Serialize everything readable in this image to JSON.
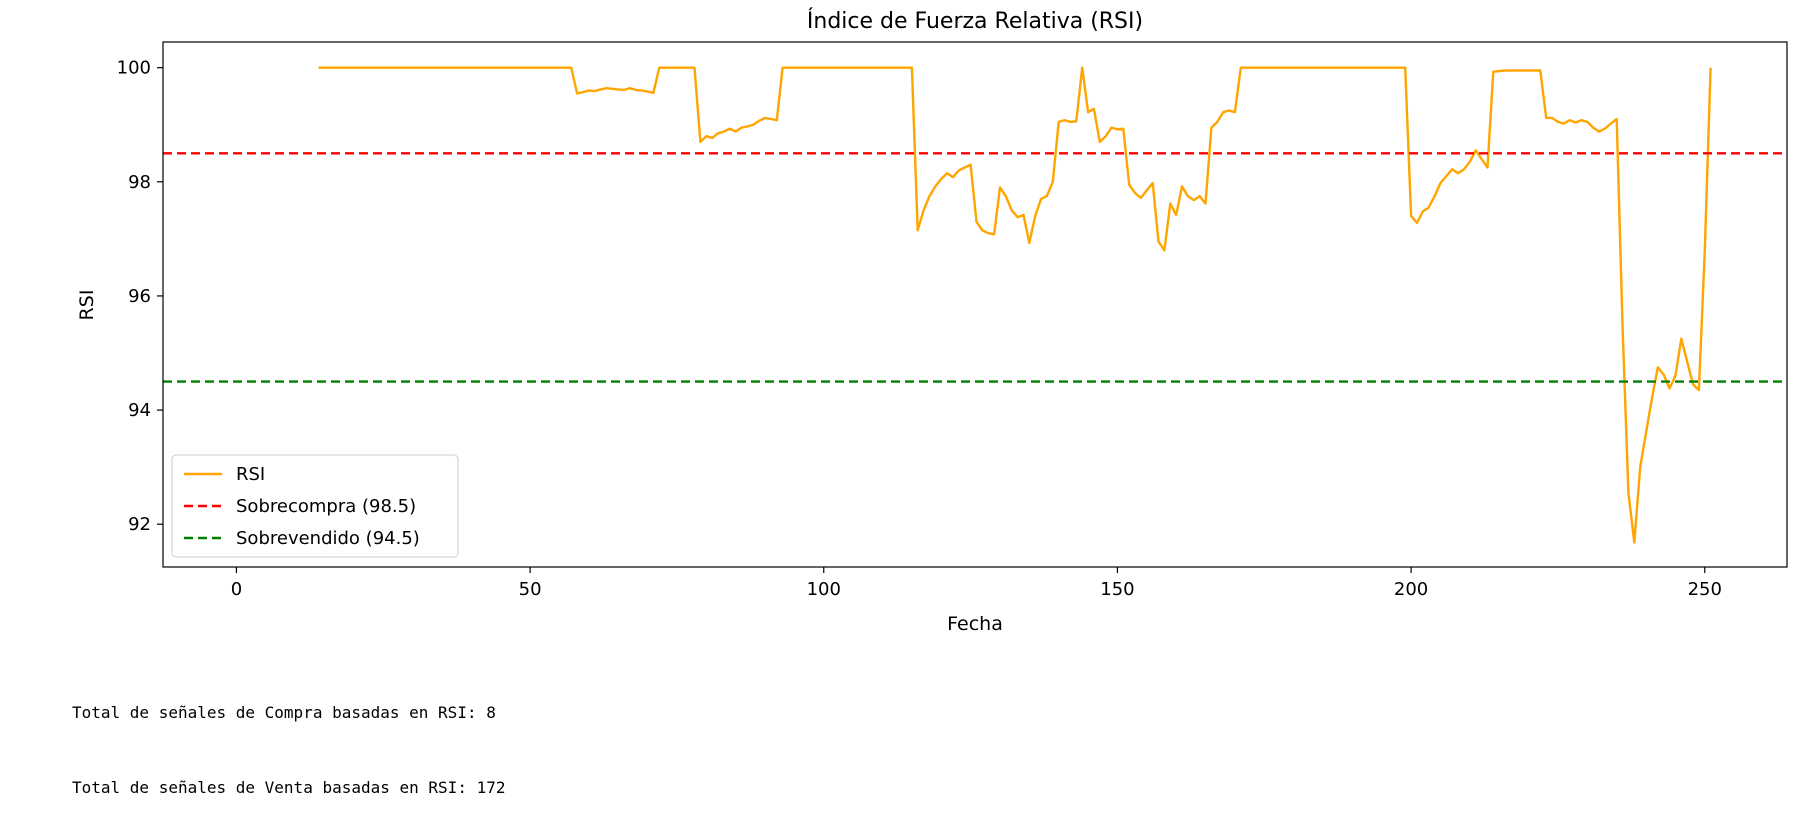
{
  "chart_data": {
    "type": "line",
    "title": "Índice de Fuerza Relativa (RSI)",
    "xlabel": "Fecha",
    "ylabel": "RSI",
    "xlim": [
      -12.5,
      264
    ],
    "ylim": [
      91.25,
      100.45
    ],
    "xticks": [
      0,
      50,
      100,
      150,
      200,
      250
    ],
    "yticks": [
      92,
      94,
      96,
      98,
      100
    ],
    "grid": false,
    "legend_position": "lower-left",
    "series": [
      {
        "name": "RSI",
        "color": "#FFA500",
        "style": "solid",
        "points": [
          [
            14,
            100
          ],
          [
            20,
            100
          ],
          [
            30,
            100
          ],
          [
            40,
            100
          ],
          [
            50,
            100
          ],
          [
            57,
            100
          ],
          [
            58,
            99.55
          ],
          [
            59,
            99.57
          ],
          [
            60,
            99.6
          ],
          [
            61,
            99.59
          ],
          [
            62,
            99.62
          ],
          [
            63,
            99.64
          ],
          [
            64,
            99.63
          ],
          [
            65,
            99.62
          ],
          [
            66,
            99.61
          ],
          [
            67,
            99.64
          ],
          [
            68,
            99.61
          ],
          [
            69,
            99.6
          ],
          [
            70,
            99.58
          ],
          [
            71,
            99.56
          ],
          [
            72,
            100
          ],
          [
            78,
            100
          ],
          [
            79,
            98.7
          ],
          [
            80,
            98.8
          ],
          [
            81,
            98.77
          ],
          [
            82,
            98.85
          ],
          [
            83,
            98.88
          ],
          [
            84,
            98.93
          ],
          [
            85,
            98.88
          ],
          [
            86,
            98.95
          ],
          [
            87,
            98.97
          ],
          [
            88,
            99.0
          ],
          [
            89,
            99.07
          ],
          [
            90,
            99.12
          ],
          [
            91,
            99.1
          ],
          [
            92,
            99.08
          ],
          [
            93,
            100
          ],
          [
            115,
            100
          ],
          [
            116,
            97.15
          ],
          [
            117,
            97.5
          ],
          [
            118,
            97.75
          ],
          [
            119,
            97.92
          ],
          [
            120,
            98.05
          ],
          [
            121,
            98.15
          ],
          [
            122,
            98.08
          ],
          [
            123,
            98.2
          ],
          [
            124,
            98.25
          ],
          [
            125,
            98.3
          ],
          [
            126,
            97.3
          ],
          [
            127,
            97.15
          ],
          [
            128,
            97.1
          ],
          [
            129,
            97.08
          ],
          [
            130,
            97.9
          ],
          [
            131,
            97.75
          ],
          [
            132,
            97.5
          ],
          [
            133,
            97.38
          ],
          [
            134,
            97.42
          ],
          [
            135,
            96.93
          ],
          [
            136,
            97.4
          ],
          [
            137,
            97.7
          ],
          [
            138,
            97.75
          ],
          [
            139,
            98.0
          ],
          [
            140,
            99.05
          ],
          [
            141,
            99.08
          ],
          [
            142,
            99.05
          ],
          [
            143,
            99.06
          ],
          [
            144,
            100
          ],
          [
            145,
            99.22
          ],
          [
            146,
            99.28
          ],
          [
            147,
            98.7
          ],
          [
            148,
            98.8
          ],
          [
            149,
            98.95
          ],
          [
            150,
            98.92
          ],
          [
            151,
            98.93
          ],
          [
            152,
            97.95
          ],
          [
            153,
            97.8
          ],
          [
            154,
            97.72
          ],
          [
            155,
            97.85
          ],
          [
            156,
            97.98
          ],
          [
            157,
            96.95
          ],
          [
            158,
            96.8
          ],
          [
            159,
            97.62
          ],
          [
            160,
            97.42
          ],
          [
            161,
            97.92
          ],
          [
            162,
            97.75
          ],
          [
            163,
            97.68
          ],
          [
            164,
            97.75
          ],
          [
            165,
            97.62
          ],
          [
            166,
            98.95
          ],
          [
            167,
            99.05
          ],
          [
            168,
            99.22
          ],
          [
            169,
            99.25
          ],
          [
            170,
            99.22
          ],
          [
            171,
            100
          ],
          [
            199,
            100
          ],
          [
            200,
            97.4
          ],
          [
            201,
            97.28
          ],
          [
            202,
            97.48
          ],
          [
            203,
            97.55
          ],
          [
            204,
            97.75
          ],
          [
            205,
            97.98
          ],
          [
            206,
            98.1
          ],
          [
            207,
            98.22
          ],
          [
            208,
            98.15
          ],
          [
            209,
            98.22
          ],
          [
            210,
            98.35
          ],
          [
            211,
            98.55
          ],
          [
            212,
            98.4
          ],
          [
            213,
            98.25
          ],
          [
            214,
            99.93
          ],
          [
            216,
            99.95
          ],
          [
            219,
            99.95
          ],
          [
            222,
            99.95
          ],
          [
            223,
            99.12
          ],
          [
            224,
            99.12
          ],
          [
            225,
            99.05
          ],
          [
            226,
            99.02
          ],
          [
            227,
            99.08
          ],
          [
            228,
            99.04
          ],
          [
            229,
            99.08
          ],
          [
            230,
            99.05
          ],
          [
            231,
            98.95
          ],
          [
            232,
            98.88
          ],
          [
            233,
            98.93
          ],
          [
            234,
            99.02
          ],
          [
            235,
            99.1
          ],
          [
            236,
            95.5
          ],
          [
            237,
            92.55
          ],
          [
            238,
            91.68
          ],
          [
            239,
            93.0
          ],
          [
            240,
            93.6
          ],
          [
            241,
            94.2
          ],
          [
            242,
            94.75
          ],
          [
            243,
            94.62
          ],
          [
            244,
            94.38
          ],
          [
            245,
            94.6
          ],
          [
            246,
            95.25
          ],
          [
            247,
            94.85
          ],
          [
            248,
            94.45
          ],
          [
            249,
            94.35
          ],
          [
            250,
            96.8
          ],
          [
            251,
            100
          ]
        ]
      },
      {
        "name": "Sobrecompra (98.5)",
        "color": "#FF0000",
        "style": "dashed",
        "y": 98.5
      },
      {
        "name": "Sobrevendido (94.5)",
        "color": "#008000",
        "style": "dashed",
        "y": 94.5
      }
    ]
  },
  "output": [
    "Total de señales de Compra basadas en RSI: 8",
    "Total de señales de Venta basadas en RSI: 172"
  ]
}
